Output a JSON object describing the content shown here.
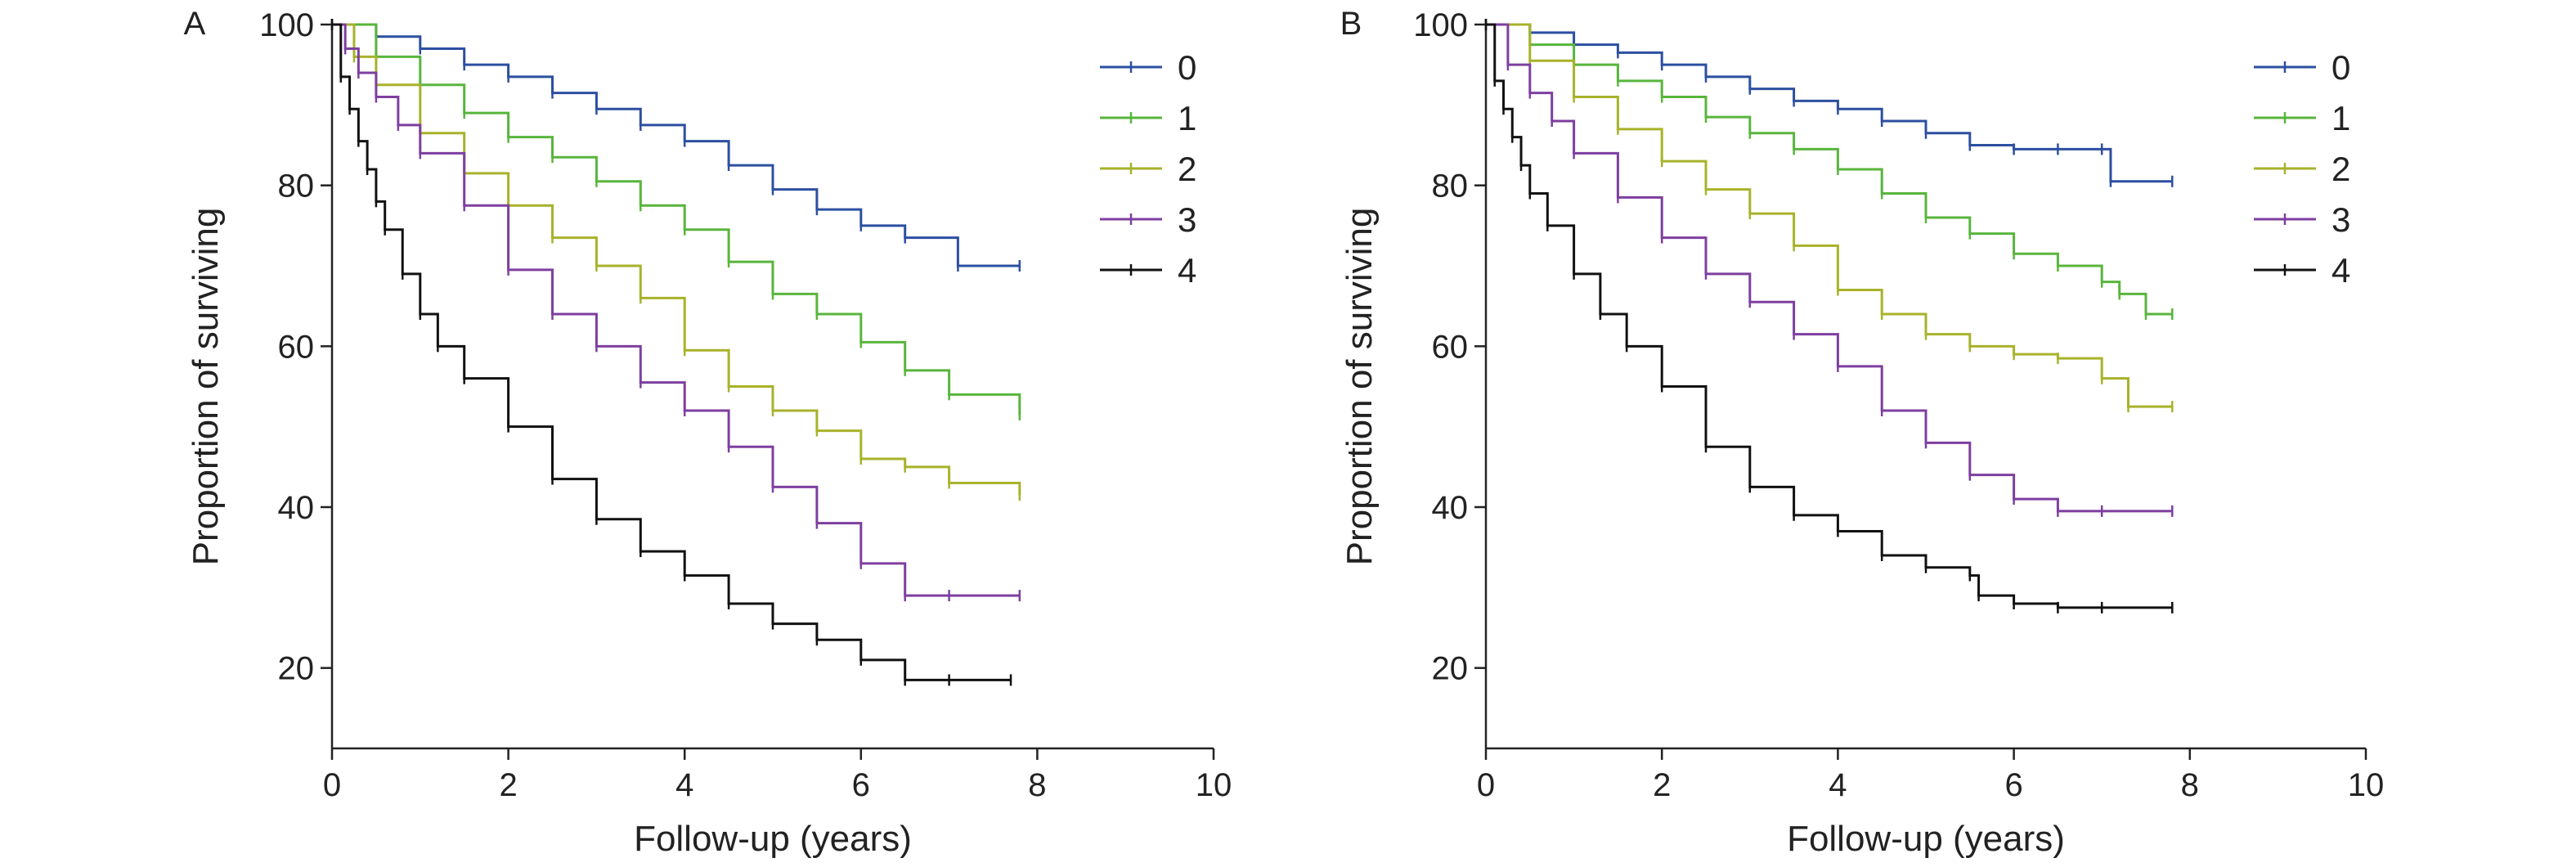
{
  "chart_data": [
    {
      "type": "line",
      "step": true,
      "panel_label": "A",
      "xlabel": "Follow-up (years)",
      "ylabel": "Proportion of surviving",
      "xlim": [
        0,
        10
      ],
      "ylim": [
        10,
        100
      ],
      "xticks": [
        0,
        2,
        4,
        6,
        8,
        10
      ],
      "yticks": [
        20,
        40,
        60,
        80,
        100
      ],
      "legend_position": "top-right",
      "grid": false,
      "series": [
        {
          "name": "0",
          "color": "#2c4fa0",
          "x": [
            0,
            0.5,
            1,
            1.5,
            2,
            2.5,
            3,
            3.5,
            4,
            4.5,
            5,
            5.5,
            6,
            6.5,
            7.1,
            7.8
          ],
          "y": [
            100,
            98.5,
            97,
            95,
            93.5,
            91.5,
            89.5,
            87.5,
            85.5,
            82.5,
            79.5,
            77,
            75,
            73.5,
            70,
            70
          ]
        },
        {
          "name": "1",
          "color": "#58b53c",
          "x": [
            0,
            0.5,
            1,
            1.5,
            2,
            2.5,
            3,
            3.5,
            4,
            4.5,
            5,
            5.5,
            6,
            6.5,
            7,
            7.8
          ],
          "y": [
            100,
            96,
            92.5,
            89,
            86,
            83.5,
            80.5,
            77.5,
            74.5,
            70.5,
            66.5,
            64,
            60.5,
            57,
            54,
            51.5
          ]
        },
        {
          "name": "2",
          "color": "#a8b22a",
          "x": [
            0,
            0.25,
            0.5,
            1,
            1.5,
            2,
            2.5,
            3,
            3.5,
            4,
            4.5,
            5,
            5.5,
            6,
            6.5,
            7,
            7.8
          ],
          "y": [
            100,
            96,
            92.5,
            86.5,
            81.5,
            77.5,
            73.5,
            70,
            66,
            59.5,
            55,
            52,
            49.5,
            46,
            45,
            43,
            41.5
          ]
        },
        {
          "name": "3",
          "color": "#7e3fa0",
          "x": [
            0,
            0.15,
            0.3,
            0.5,
            0.75,
            1,
            1.5,
            2,
            2.5,
            3,
            3.5,
            4,
            4.5,
            5,
            5.5,
            6,
            6.5,
            7,
            7.8
          ],
          "y": [
            100,
            97,
            94,
            91,
            87.5,
            84,
            77.5,
            69.5,
            64,
            60,
            55.5,
            52,
            47.5,
            42.5,
            38,
            33,
            29,
            29,
            29
          ]
        },
        {
          "name": "4",
          "color": "#111111",
          "x": [
            0,
            0.1,
            0.2,
            0.3,
            0.4,
            0.5,
            0.6,
            0.8,
            1,
            1.2,
            1.5,
            2,
            2.5,
            3,
            3.5,
            4,
            4.5,
            5,
            5.5,
            6,
            6.5,
            7,
            7.7
          ],
          "y": [
            100,
            93.5,
            89.5,
            85.5,
            82,
            78,
            74.5,
            69,
            64,
            60,
            56,
            50,
            43.5,
            38.5,
            34.5,
            31.5,
            28,
            25.5,
            23.5,
            21,
            18.5,
            18.5,
            18.5
          ]
        }
      ]
    },
    {
      "type": "line",
      "step": true,
      "panel_label": "B",
      "xlabel": "Follow-up (years)",
      "ylabel": "Proportion of surviving",
      "xlim": [
        0,
        10
      ],
      "ylim": [
        10,
        100
      ],
      "xticks": [
        0,
        2,
        4,
        6,
        8,
        10
      ],
      "yticks": [
        20,
        40,
        60,
        80,
        100
      ],
      "legend_position": "top-right",
      "grid": false,
      "series": [
        {
          "name": "0",
          "color": "#2c4fa0",
          "x": [
            0,
            0.5,
            1,
            1.5,
            2,
            2.5,
            3,
            3.5,
            4,
            4.5,
            5,
            5.5,
            6,
            6.5,
            7,
            7.1,
            7.8
          ],
          "y": [
            100,
            99,
            97.5,
            96.5,
            95,
            93.5,
            92,
            90.5,
            89.5,
            88,
            86.5,
            85,
            84.5,
            84.5,
            84.5,
            80.5,
            80.5
          ]
        },
        {
          "name": "1",
          "color": "#58b53c",
          "x": [
            0,
            0.5,
            1,
            1.5,
            2,
            2.5,
            3,
            3.5,
            4,
            4.5,
            5,
            5.5,
            6,
            6.5,
            7,
            7.2,
            7.5,
            7.8
          ],
          "y": [
            100,
            97.5,
            95,
            93,
            91,
            88.5,
            86.5,
            84.5,
            82,
            79,
            76,
            74,
            71.5,
            70,
            68,
            66.5,
            64,
            64
          ]
        },
        {
          "name": "2",
          "color": "#a8b22a",
          "x": [
            0,
            0.5,
            1,
            1.5,
            2,
            2.5,
            3,
            3.5,
            4,
            4.5,
            5,
            5.5,
            6,
            6.5,
            7,
            7.3,
            7.8
          ],
          "y": [
            100,
            95.5,
            91,
            87,
            83,
            79.5,
            76.5,
            72.5,
            67,
            64,
            61.5,
            60,
            59,
            58.5,
            56,
            52.5,
            52.5
          ]
        },
        {
          "name": "3",
          "color": "#7e3fa0",
          "x": [
            0,
            0.25,
            0.5,
            0.75,
            1,
            1.5,
            2,
            2.5,
            3,
            3.5,
            4,
            4.5,
            5,
            5.5,
            6,
            6.5,
            7,
            7.8
          ],
          "y": [
            100,
            95,
            91.5,
            88,
            84,
            78.5,
            73.5,
            69,
            65.5,
            61.5,
            57.5,
            52,
            48,
            44,
            41,
            39.5,
            39.5,
            39.5
          ]
        },
        {
          "name": "4",
          "color": "#111111",
          "x": [
            0,
            0.1,
            0.2,
            0.3,
            0.4,
            0.5,
            0.7,
            1,
            1.3,
            1.6,
            2,
            2.5,
            3,
            3.5,
            4,
            4.5,
            5,
            5.5,
            5.6,
            6,
            6.5,
            7,
            7.8
          ],
          "y": [
            100,
            93,
            89.5,
            86,
            82.5,
            79,
            75,
            69,
            64,
            60,
            55,
            47.5,
            42.5,
            39,
            37,
            34,
            32.5,
            31.5,
            29,
            28,
            27.5,
            27.5,
            27.5
          ]
        }
      ]
    }
  ]
}
